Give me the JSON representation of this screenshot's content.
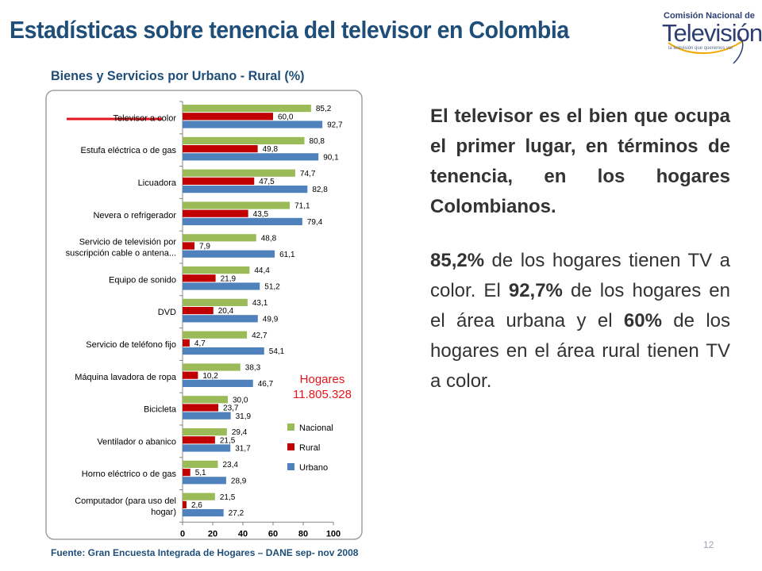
{
  "slide": {
    "title": "Estadísticas sobre tenencia del televisor en Colombia",
    "logo": {
      "line1": "Comisión Nacional de",
      "line2": "Televisión",
      "line3": "la televisión que queremos ver"
    },
    "hogares_label": "Hogares",
    "hogares_value": "11.805.328",
    "paragraph1": "El televisor es el bien que ocupa el primer lugar, en términos de tenencia, en los hogares Colombianos.",
    "paragraph2": {
      "bold1": "85,2%",
      "text1": " de los hogares tienen TV a color. El ",
      "bold2": "92,7%",
      "text2": " de los hogares en el área urbana y el ",
      "bold3": "60%",
      "text3": " de los hogares en el área rural tienen TV a color."
    },
    "source": "Fuente: Gran Encuesta Integrada de Hogares – DANE sep- nov 2008",
    "page_number": "12",
    "colors": {
      "title": "#1f4e79",
      "nacional": "#9bbb59",
      "rural": "#c00000",
      "urbano": "#4f81bd",
      "highlight_line": "#e3141b"
    }
  },
  "chart_data": {
    "type": "bar",
    "orientation": "horizontal",
    "title": "Bienes y Servicios por Urbano - Rural (%)",
    "categories": [
      [
        "Televisor a color"
      ],
      [
        "Estufa eléctrica o de gas"
      ],
      [
        "Licuadora"
      ],
      [
        "Nevera o refrigerador"
      ],
      [
        "Servicio de televisión por",
        "suscripción cable o antena..."
      ],
      [
        "Equipo de sonido"
      ],
      [
        "DVD"
      ],
      [
        "Servicio de teléfono fijo"
      ],
      [
        "Máquina lavadora de ropa"
      ],
      [
        "Bicicleta"
      ],
      [
        "Ventilador o abanico"
      ],
      [
        "Horno eléctrico o de gas"
      ],
      [
        "Computador (para uso del",
        "hogar)"
      ]
    ],
    "series": [
      {
        "name": "Nacional",
        "color": "#9bbb59",
        "values": [
          85.2,
          80.8,
          74.7,
          71.1,
          48.8,
          44.4,
          43.1,
          42.7,
          38.3,
          30.0,
          29.4,
          23.4,
          21.5
        ],
        "labels": [
          "85,2",
          "80,8",
          "74,7",
          "71,1",
          "48,8",
          "44,4",
          "43,1",
          "42,7",
          "38,3",
          "30,0",
          "29,4",
          "23,4",
          "21,5"
        ]
      },
      {
        "name": "Rural",
        "color": "#c00000",
        "values": [
          60.0,
          49.8,
          47.5,
          43.5,
          7.9,
          21.9,
          20.4,
          4.7,
          10.2,
          23.7,
          21.5,
          5.1,
          2.6
        ],
        "labels": [
          "60,0",
          "49,8",
          "47,5",
          "43,5",
          "7,9",
          "21,9",
          "20,4",
          "4,7",
          "10,2",
          "23,7",
          "21,5",
          "5,1",
          "2,6"
        ]
      },
      {
        "name": "Urbano",
        "color": "#4f81bd",
        "values": [
          92.7,
          90.1,
          82.8,
          79.4,
          61.1,
          51.2,
          49.9,
          54.1,
          46.7,
          31.9,
          31.7,
          28.9,
          27.2
        ],
        "labels": [
          "92,7",
          "90,1",
          "82,8",
          "79,4",
          "61,1",
          "51,2",
          "49,9",
          "54,1",
          "46,7",
          "31,9",
          "31,7",
          "28,9",
          "27,2"
        ]
      }
    ],
    "xlim": [
      0,
      100
    ],
    "xticks": [
      "0",
      "20",
      "40",
      "60",
      "80",
      "100"
    ],
    "grid": false,
    "legend": "bottom-right inside plot"
  }
}
